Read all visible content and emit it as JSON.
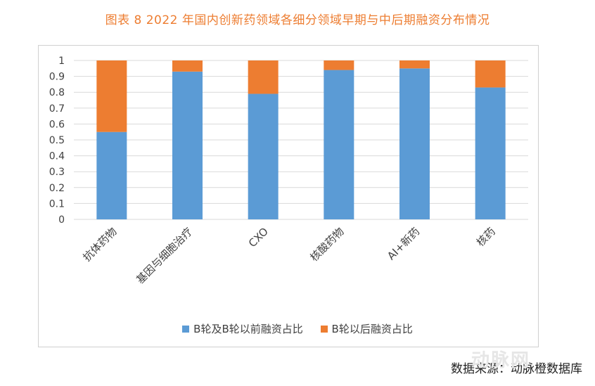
{
  "page_title": "图表  8 2022 年国内创新药领域各细分领域早期与中后期融资分布情况",
  "source": "数据来源：动脉橙数据库",
  "watermark": "动脉网",
  "colors": {
    "series_early": "#5b9bd5",
    "series_late": "#ed7d31",
    "title": "#ed7d31"
  },
  "chart_data": {
    "type": "bar",
    "stacked": true,
    "categories": [
      "抗体药物",
      "基因与细胞治疗",
      "CXO",
      "核酸药物",
      "AI+新药",
      "核药"
    ],
    "series": [
      {
        "name": "B轮及B轮以前融资占比",
        "values": [
          0.55,
          0.93,
          0.79,
          0.94,
          0.95,
          0.83
        ]
      },
      {
        "name": "B轮以后融资占比",
        "values": [
          0.45,
          0.07,
          0.21,
          0.06,
          0.05,
          0.17
        ]
      }
    ],
    "ylim": [
      0,
      1
    ],
    "yticks": [
      "0",
      "0.1",
      "0.2",
      "0.3",
      "0.4",
      "0.5",
      "0.6",
      "0.7",
      "0.8",
      "0.9",
      "1"
    ],
    "grid": true,
    "legend": "bottom"
  }
}
